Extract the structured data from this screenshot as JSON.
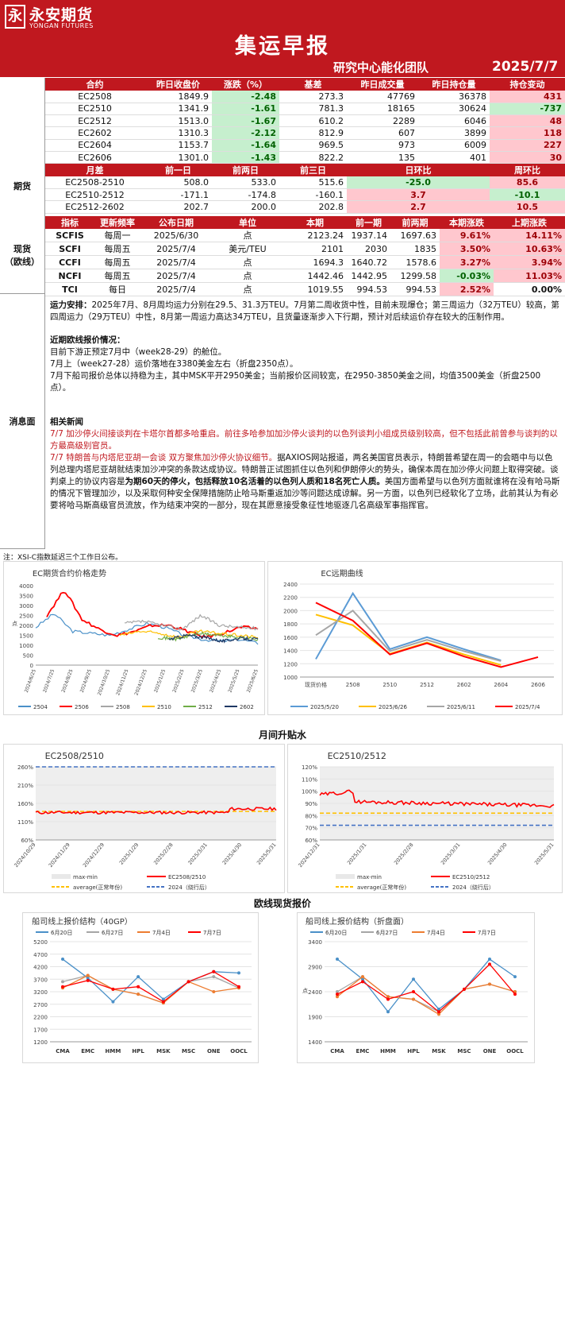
{
  "header": {
    "logo_mark": "永",
    "logo_cn": "永安期货",
    "logo_en": "YONGAN FUTURES",
    "title": "集运早报",
    "team": "研究中心能化团队",
    "date": "2025/7/7"
  },
  "futures": {
    "label": "期货",
    "head": [
      "合约",
      "昨日收盘价",
      "涨跌（%）",
      "基差",
      "昨日成交量",
      "昨日持仓量",
      "持仓变动"
    ],
    "rows": [
      [
        "EC2508",
        "1849.9",
        "-2.48",
        "273.3",
        "47769",
        "36378",
        "431"
      ],
      [
        "EC2510",
        "1341.9",
        "-1.61",
        "781.3",
        "18165",
        "30624",
        "-737"
      ],
      [
        "EC2512",
        "1513.0",
        "-1.67",
        "610.2",
        "2289",
        "6046",
        "48"
      ],
      [
        "EC2602",
        "1310.3",
        "-2.12",
        "812.9",
        "607",
        "3899",
        "118"
      ],
      [
        "EC2604",
        "1153.7",
        "-1.64",
        "969.5",
        "973",
        "6009",
        "227"
      ],
      [
        "EC2606",
        "1301.0",
        "-1.43",
        "822.2",
        "135",
        "401",
        "30"
      ]
    ],
    "spread_head": [
      "月差",
      "前一日",
      "前两日",
      "前三日",
      "日环比",
      "周环比"
    ],
    "spreads": [
      [
        "EC2508-2510",
        "508.0",
        "533.0",
        "515.6",
        "-25.0",
        "85.6"
      ],
      [
        "EC2510-2512",
        "-171.1",
        "-174.8",
        "-160.1",
        "3.7",
        "-10.1"
      ],
      [
        "EC2512-2602",
        "202.7",
        "200.0",
        "202.8",
        "2.7",
        "10.5"
      ]
    ]
  },
  "spot": {
    "label_1": "现货",
    "label_2": "（欧线）",
    "head": [
      "指标",
      "更新频率",
      "公布日期",
      "单位",
      "本期",
      "前一期",
      "前两期",
      "本期涨跌",
      "上期涨跌"
    ],
    "rows": [
      [
        "SCFIS",
        "每周一",
        "2025/6/30",
        "点",
        "2123.24",
        "1937.14",
        "1697.63",
        "9.61%",
        "14.11%"
      ],
      [
        "SCFI",
        "每周五",
        "2025/7/4",
        "美元/TEU",
        "2101",
        "2030",
        "1835",
        "3.50%",
        "10.63%"
      ],
      [
        "CCFI",
        "每周五",
        "2025/7/4",
        "点",
        "1694.3",
        "1640.72",
        "1578.6",
        "3.27%",
        "3.94%"
      ],
      [
        "NCFI",
        "每周五",
        "2025/7/4",
        "点",
        "1442.46",
        "1442.95",
        "1299.58",
        "-0.03%",
        "11.03%"
      ],
      [
        "TCI",
        "每日",
        "2025/7/4",
        "点",
        "1019.55",
        "994.53",
        "994.53",
        "2.52%",
        "0.00%"
      ]
    ]
  },
  "news": {
    "label": "消息面",
    "p1_title": "运力安排：",
    "p1": "2025年7月、8月周均运力分别在29.5、31.3万TEU。7月第二周收货中性，目前未现爆仓；第三周运力（32万TEU）较高，第四周运力（29万TEU）中性，8月第一周运力高达34万TEU，且货量逐渐步入下行期，预计对后续运价存在较大的压制作用。",
    "p2_title": "近期欧线报价情况：",
    "p2_l1": "目前下游正预定7月中（week28-29）的舱位。",
    "p2_l2": "7月上（week27-28）运价落地在3380美金左右（折盘2350点）。",
    "p2_l3": "7月下船司报价总体以持稳为主，其中MSK平开2950美金；当前报价区间较宽，在2950-3850美金之间，均值3500美金（折盘2500点）。",
    "p3_title": "相关新闻",
    "n1": "7/7 加沙停火间接谈判在卡塔尔首都多哈重启。前往多哈参加加沙停火谈判的以色列谈判小组成员级别较高，但不包括此前曾参与谈判的以方最高级别官员。",
    "n2_red": "7/7 特朗普与内塔尼亚胡一会谈 双方聚焦加沙停火协议细节。",
    "n2_a": "据AXIOS网站报道，两名美国官员表示，特朗普希望在周一的会晤中与以色列总理内塔尼亚胡就结束加沙冲突的条款达成协议。特朗普正试图抓住以色列和伊朗停火的势头，确保本周在加沙停火问题上取得突破。谈判桌上的协议内容是",
    "n2_b": "为期60天的停火，包括释放10名活着的以色列人质和18名死亡人质。",
    "n2_c": "美国方面希望与以色列方面就谁将在没有哈马斯的情况下管理加沙，以及采取何种安全保障措施防止哈马斯重返加沙等问题达成谅解。另一方面，以色列已经软化了立场，此前其认为有必要将哈马斯高级官员流放，作为结束冲突的一部分，现在其愿意接受象征性地驱逐几名高级军事指挥官。"
  },
  "note": "注：XSI-C指数延迟三个工作日公布。",
  "section_titles": {
    "spread": "月间升贴水",
    "spot": "欧线现货报价"
  },
  "chart_data": [
    {
      "type": "line",
      "title": "EC期货合约价格走势",
      "ylabel": "点",
      "ylim": [
        0,
        4000
      ],
      "yticks": [
        "0",
        "500",
        "1000",
        "1500",
        "2000",
        "2500",
        "3000",
        "3500",
        "4000"
      ],
      "xticks": [
        "2024/6/25",
        "2024/7/25",
        "2024/8/25",
        "2024/9/25",
        "2024/10/25",
        "2024/11/25",
        "2024/12/25",
        "2025/1/25",
        "2025/2/25",
        "2025/3/25",
        "2025/4/25",
        "2025/5/25",
        "2025/6/25"
      ],
      "series": [
        {
          "name": "2504",
          "color": "#4a90c8"
        },
        {
          "name": "2506",
          "color": "#ff0000"
        },
        {
          "name": "2508",
          "color": "#a6a6a6"
        },
        {
          "name": "2510",
          "color": "#ffc000"
        },
        {
          "name": "2512",
          "color": "#70ad47"
        },
        {
          "name": "2602",
          "color": "#1f3864"
        }
      ]
    },
    {
      "type": "line",
      "title": "EC远期曲线",
      "ylim": [
        1000,
        2400
      ],
      "yticks": [
        "1000",
        "1200",
        "1400",
        "1600",
        "1800",
        "2000",
        "2200",
        "2400"
      ],
      "categories": [
        "现货价格",
        "2508",
        "2510",
        "2512",
        "2602",
        "2604",
        "2606"
      ],
      "series": [
        {
          "name": "2025/5/20",
          "color": "#5b9bd5",
          "values": [
            1270,
            2260,
            1420,
            1600,
            1420,
            1250,
            null
          ]
        },
        {
          "name": "2025/6/26",
          "color": "#ffc000",
          "values": [
            1940,
            1780,
            1350,
            1520,
            1340,
            1180,
            null
          ]
        },
        {
          "name": "2025/6/11",
          "color": "#a6a6a6",
          "values": [
            1630,
            2000,
            1390,
            1560,
            1390,
            1240,
            null
          ]
        },
        {
          "name": "2025/7/4",
          "color": "#ff0000",
          "values": [
            2120,
            1850,
            1340,
            1510,
            1310,
            1150,
            1300
          ]
        }
      ]
    },
    {
      "type": "line",
      "title": "EC2508/2510",
      "ylim": [
        0.6,
        2.6
      ],
      "yticks": [
        "60%",
        "110%",
        "160%",
        "210%",
        "260%"
      ],
      "xticks": [
        "2024/10/29",
        "2024/11/29",
        "2024/12/29",
        "2025/1/29",
        "2025/2/28",
        "2025/3/31",
        "2025/4/30",
        "2025/5/31"
      ],
      "legend": [
        "max-min",
        "EC2508/2510",
        "average(正常年份)",
        "2024（绕行后）"
      ],
      "avg": 1.38,
      "y2024": 2.6
    },
    {
      "type": "line",
      "title": "EC2510/2512",
      "ylim": [
        0.6,
        1.2
      ],
      "yticks": [
        "60%",
        "70%",
        "80%",
        "90%",
        "100%",
        "110%",
        "120%"
      ],
      "xticks": [
        "2024/12/31",
        "2025/1/31",
        "2025/2/28",
        "2025/3/31",
        "2025/4/30",
        "2025/5/31"
      ],
      "legend": [
        "max-min",
        "EC2510/2512",
        "average(正常年份)",
        "2024（绕行后）"
      ],
      "avg": 0.82,
      "y2024": 0.72
    },
    {
      "type": "line",
      "title": "船司线上报价结构（40GP）",
      "ylim": [
        1200,
        5200
      ],
      "yticks": [
        "1200",
        "1700",
        "2200",
        "2700",
        "3200",
        "3700",
        "4200",
        "4700",
        "5200"
      ],
      "categories": [
        "CMA",
        "EMC",
        "HMM",
        "HPL",
        "MSK",
        "MSC",
        "ONE",
        "OOCL"
      ],
      "series": [
        {
          "name": "6月20日",
          "color": "#4a90c8",
          "values": [
            4500,
            3750,
            2800,
            3800,
            2900,
            3600,
            4000,
            3950
          ]
        },
        {
          "name": "6月27日",
          "color": "#a6a6a6",
          "values": [
            3600,
            3850,
            3300,
            3100,
            2750,
            3600,
            3800,
            3350
          ]
        },
        {
          "name": "7月4日",
          "color": "#ed7d31",
          "values": [
            3350,
            3850,
            3300,
            3100,
            2750,
            3600,
            3200,
            3350
          ]
        },
        {
          "name": "7月7日",
          "color": "#ff0000",
          "values": [
            3400,
            3650,
            3300,
            3400,
            2800,
            3600,
            4000,
            3400
          ]
        }
      ]
    },
    {
      "type": "line",
      "title": "船司线上报价结构（折盘面）",
      "ylabel": "点",
      "ylim": [
        1400,
        3400
      ],
      "yticks": [
        "1400",
        "1900",
        "2400",
        "2900",
        "3400"
      ],
      "categories": [
        "CMA",
        "EMC",
        "HMM",
        "HPL",
        "MSK",
        "MSC",
        "ONE",
        "OOCL"
      ],
      "series": [
        {
          "name": "6月20日",
          "color": "#4a90c8",
          "values": [
            3050,
            2650,
            2000,
            2650,
            2050,
            2450,
            3050,
            2700
          ]
        },
        {
          "name": "6月27日",
          "color": "#a6a6a6",
          "values": [
            2400,
            2700,
            2300,
            2250,
            2000,
            2450,
            2550,
            2400
          ]
        },
        {
          "name": "7月4日",
          "color": "#ed7d31",
          "values": [
            2300,
            2700,
            2300,
            2250,
            1950,
            2450,
            2550,
            2400
          ]
        },
        {
          "name": "7月7日",
          "color": "#ff0000",
          "values": [
            2350,
            2600,
            2250,
            2400,
            2000,
            2450,
            2950,
            2350
          ]
        }
      ]
    }
  ]
}
